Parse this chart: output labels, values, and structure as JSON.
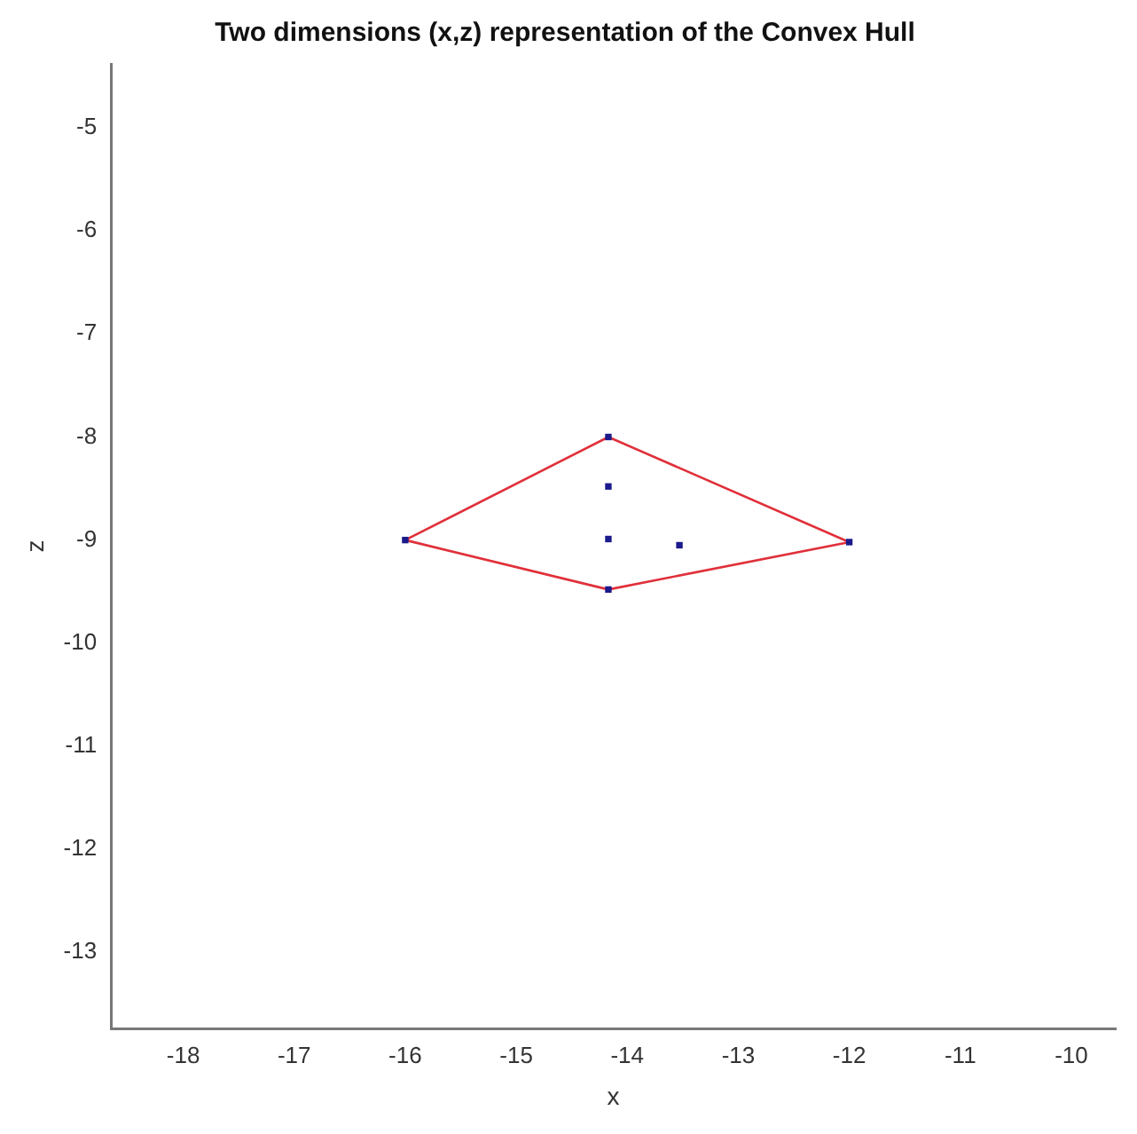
{
  "chart_data": {
    "type": "scatter",
    "title": "Two dimensions (x,z) representation of the Convex Hull",
    "xlabel": "x",
    "ylabel": "z",
    "series": [
      {
        "type": "line",
        "color": "#e0303a",
        "x": [
          -16,
          -14.17,
          -12
        ],
        "values": [
          -9,
          -8,
          -9.02
        ],
        "marker": "none",
        "line_style": "solid"
      },
      {
        "type": "line",
        "color": "#e0303a",
        "x": [
          -16,
          -14.17,
          -12
        ],
        "values": [
          -9,
          -9.48,
          -9.02
        ],
        "marker": "none",
        "line_style": "solid"
      },
      {
        "type": "scatter",
        "color": "#1a1a8c",
        "x": [
          -16,
          -14.17,
          -12,
          -14.17,
          -14.17,
          -14.17,
          -13.53
        ],
        "values": [
          -9,
          -8,
          -9.02,
          -9.48,
          -8.48,
          -8.99,
          -9.05
        ],
        "marker": "square"
      }
    ],
    "xlim": [
      -18.65,
      -9.6
    ],
    "xticks": [
      -18,
      -17,
      -16,
      -15,
      -14,
      -13,
      -12,
      -11,
      -10
    ],
    "ylim": [
      -13.74,
      -4.38
    ],
    "yticks": [
      -13,
      -12,
      -11,
      -10,
      -9,
      -8,
      -7,
      -6,
      -5
    ],
    "grid": false,
    "legend": false
  }
}
